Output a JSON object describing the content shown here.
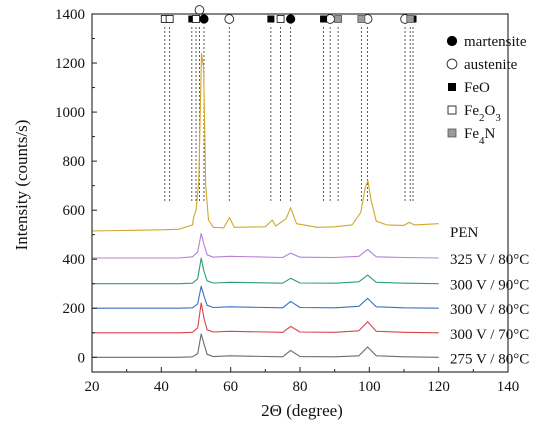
{
  "chart_data": {
    "type": "line",
    "xlabel": "2Θ (degree)",
    "ylabel": "Intensity (counts/s)",
    "xlim": [
      20,
      140
    ],
    "ylim": [
      -60,
      1400
    ],
    "x_ticks": [
      20,
      40,
      60,
      80,
      100,
      120,
      140
    ],
    "y_ticks": [
      0,
      200,
      400,
      600,
      800,
      1000,
      1200,
      1400
    ],
    "grid": false,
    "legend_position": "top-right",
    "series": [
      {
        "name": "275 V / 80°C",
        "color": "#6b6b6b",
        "baseline": 0,
        "x": [
          20,
          45,
          49,
          50.5,
          51.5,
          52.3,
          53.2,
          55,
          59.7,
          75,
          77.3,
          80,
          90,
          97,
          99.5,
          102,
          110,
          120
        ],
        "y": [
          0,
          0,
          2,
          15,
          95,
          55,
          12,
          3,
          6,
          2,
          28,
          3,
          2,
          6,
          42,
          6,
          2,
          0
        ]
      },
      {
        "name": "300 V / 70°C",
        "color": "#d9434a",
        "baseline": 100,
        "x": [
          20,
          45,
          49,
          50.5,
          51.5,
          52.3,
          53.2,
          55,
          59.7,
          75,
          77.3,
          80,
          90,
          97,
          99.5,
          102,
          110,
          120
        ],
        "y": [
          100,
          100,
          102,
          120,
          222,
          160,
          112,
          103,
          106,
          102,
          126,
          103,
          102,
          108,
          145,
          106,
          102,
          100
        ]
      },
      {
        "name": "300 V / 80°C",
        "color": "#3d6fbf",
        "baseline": 200,
        "x": [
          20,
          45,
          49,
          50.5,
          51.5,
          52.3,
          53.2,
          55,
          59.7,
          75,
          77.3,
          80,
          90,
          97,
          99.5,
          102,
          110,
          120
        ],
        "y": [
          200,
          200,
          202,
          218,
          290,
          250,
          212,
          203,
          206,
          202,
          228,
          203,
          202,
          208,
          240,
          206,
          202,
          200
        ]
      },
      {
        "name": "300 V / 90°C",
        "color": "#2e9e6e",
        "baseline": 300,
        "x": [
          20,
          45,
          49,
          50.5,
          51.5,
          52.3,
          53.2,
          55,
          59.7,
          75,
          77.3,
          80,
          90,
          97,
          99.5,
          102,
          110,
          120
        ],
        "y": [
          300,
          300,
          302,
          320,
          405,
          350,
          312,
          303,
          306,
          302,
          322,
          303,
          302,
          308,
          335,
          306,
          302,
          300
        ]
      },
      {
        "name": "325 V / 80°C",
        "color": "#b57fd6",
        "baseline": 405,
        "x": [
          20,
          45,
          49,
          50.5,
          51.5,
          52.3,
          53.2,
          55,
          59.7,
          75,
          77.3,
          80,
          90,
          97,
          99.5,
          102,
          110,
          120
        ],
        "y": [
          405,
          405,
          410,
          430,
          505,
          460,
          418,
          408,
          412,
          407,
          425,
          408,
          407,
          412,
          440,
          410,
          407,
          405
        ]
      },
      {
        "name": "PEN",
        "color": "#d1a72a",
        "baseline": 515,
        "x": [
          20,
          40,
          45,
          49,
          49.3,
          50,
          50.8,
          51.6,
          52.2,
          52.8,
          53.6,
          55,
          58,
          59.7,
          61,
          70,
          72,
          73,
          76,
          77.3,
          79,
          85,
          90,
          95,
          97.5,
          98.8,
          99.6,
          100.5,
          102,
          105,
          110,
          111.5,
          113,
          120
        ],
        "y": [
          515,
          520,
          522,
          540,
          570,
          600,
          720,
          1240,
          1180,
          700,
          560,
          530,
          528,
          570,
          530,
          532,
          560,
          535,
          565,
          610,
          545,
          530,
          532,
          540,
          590,
          690,
          720,
          640,
          555,
          540,
          538,
          550,
          540,
          545
        ]
      }
    ],
    "reference_phases": [
      {
        "name": "martensite",
        "marker": "filled-circle",
        "positions": [
          52.3,
          77.3
        ]
      },
      {
        "name": "austenite",
        "marker": "open-circle",
        "positions": [
          51.0,
          59.6,
          88.7,
          99.5,
          110.3
        ]
      },
      {
        "name": "FeO",
        "marker": "filled-square",
        "positions": [
          48.8,
          71.6,
          86.8,
          112.6
        ]
      },
      {
        "name": "Fe2O3",
        "marker": "open-square",
        "positions": [
          41.0,
          42.4,
          50.0,
          74.4
        ]
      },
      {
        "name": "Fe4N",
        "marker": "gray-square",
        "positions": [
          91.0,
          97.7,
          111.8
        ]
      }
    ],
    "legend": [
      {
        "label": "martensite",
        "marker": "filled-circle"
      },
      {
        "label": "austenite",
        "marker": "open-circle"
      },
      {
        "label": "FeO",
        "marker": "filled-square"
      },
      {
        "label": "Fe2O3",
        "marker": "open-square"
      },
      {
        "label": "Fe4N",
        "marker": "gray-square"
      }
    ]
  }
}
